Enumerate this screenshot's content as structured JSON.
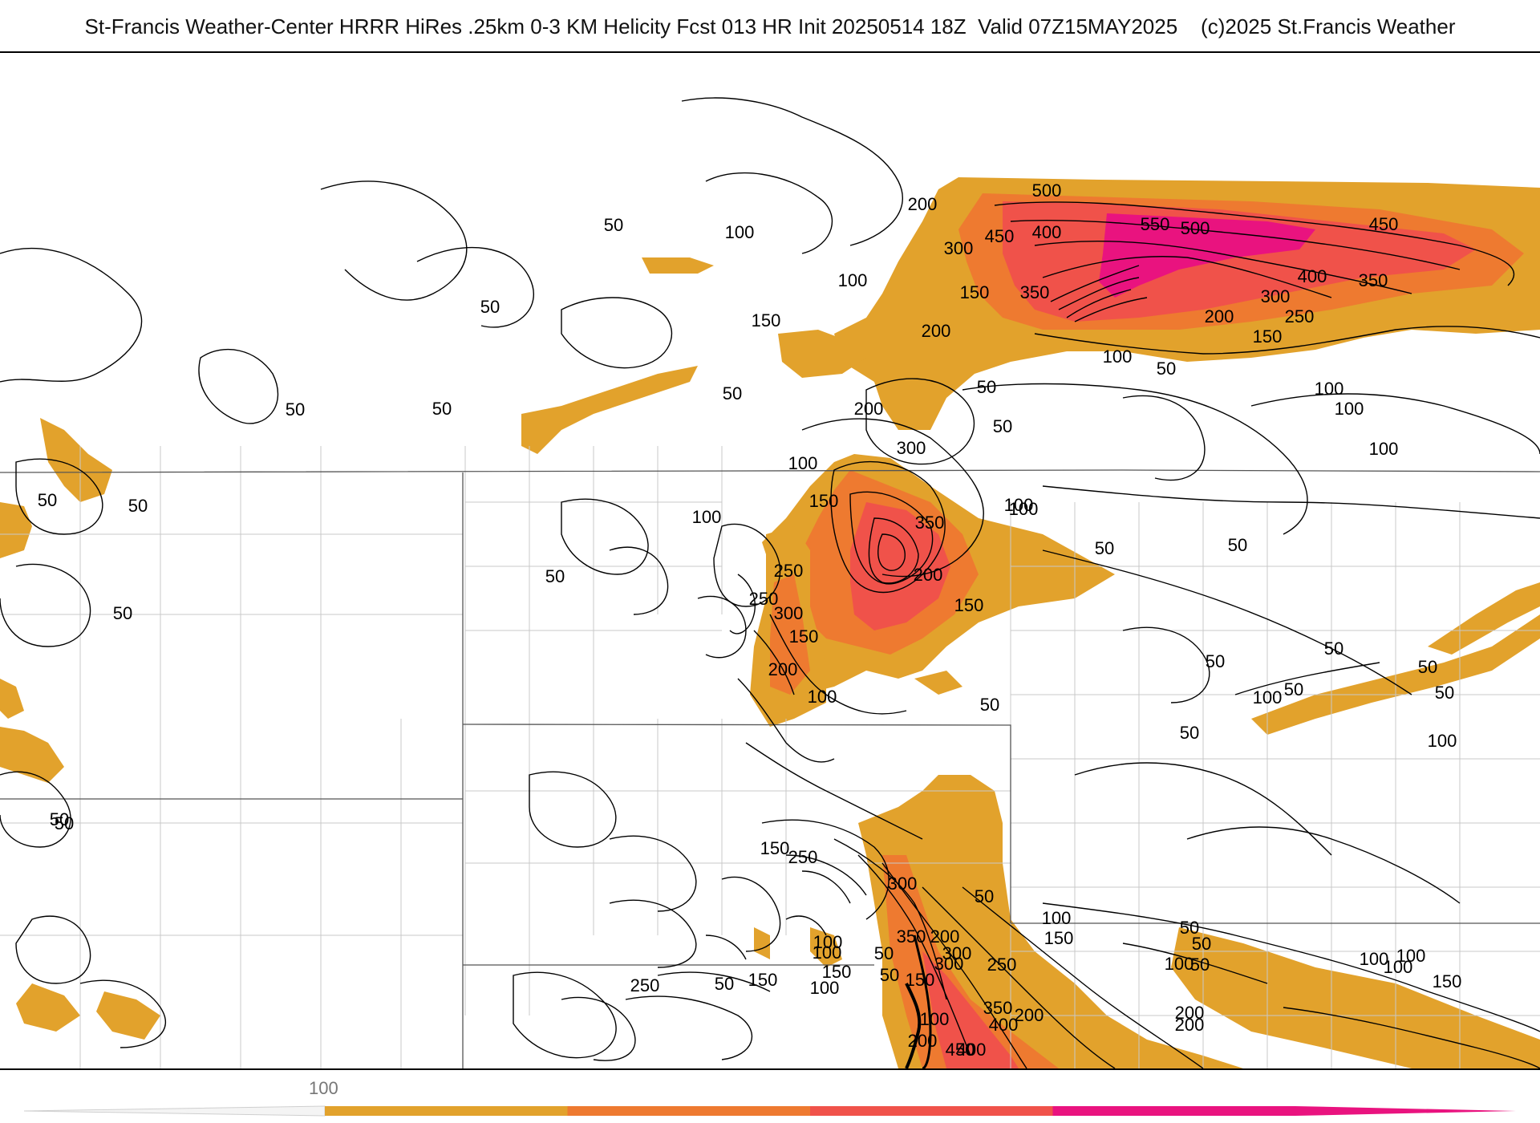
{
  "header": {
    "title": "St-Francis Weather-Center HRRR HiRes .25km 0-3 KM Helicity Fcst 013 HR Init 20250514 18Z  Valid 07Z15MAY2025    (c)2025 St.Francis Weather"
  },
  "colors": {
    "fill_100": "#e2a22c",
    "fill_200": "#ee7a30",
    "fill_300": "#f0524a",
    "fill_400": "#e9137f",
    "contour": "#000000",
    "boundary": "#555555",
    "county": "#c8c8c8"
  },
  "legend": {
    "tick_label": "100",
    "bins": [
      "#e2a22c",
      "#ee7a30",
      "#f0524a",
      "#e9137f"
    ]
  },
  "contour_labels": [
    {
      "text": "200"
    },
    {
      "text": "500"
    },
    {
      "text": "450"
    },
    {
      "text": "400"
    },
    {
      "text": "550"
    },
    {
      "text": "500"
    },
    {
      "text": "450"
    },
    {
      "text": "300"
    },
    {
      "text": "350"
    },
    {
      "text": "400"
    },
    {
      "text": "350"
    },
    {
      "text": "300"
    },
    {
      "text": "250"
    },
    {
      "text": "200"
    },
    {
      "text": "150"
    },
    {
      "text": "150"
    },
    {
      "text": "200"
    },
    {
      "text": "100"
    },
    {
      "text": "50"
    },
    {
      "text": "100"
    },
    {
      "text": "50"
    },
    {
      "text": "100"
    },
    {
      "text": "100"
    },
    {
      "text": "100"
    },
    {
      "text": "150"
    },
    {
      "text": "100"
    },
    {
      "text": "50"
    },
    {
      "text": "50"
    },
    {
      "text": "50"
    },
    {
      "text": "50"
    },
    {
      "text": "50"
    },
    {
      "text": "200"
    },
    {
      "text": "300"
    },
    {
      "text": "50"
    },
    {
      "text": "100"
    },
    {
      "text": "150"
    },
    {
      "text": "350"
    },
    {
      "text": "100"
    },
    {
      "text": "250"
    },
    {
      "text": "200"
    },
    {
      "text": "150"
    },
    {
      "text": "50"
    },
    {
      "text": "100"
    },
    {
      "text": "50"
    },
    {
      "text": "50"
    },
    {
      "text": "250"
    },
    {
      "text": "300"
    },
    {
      "text": "150"
    },
    {
      "text": "200"
    },
    {
      "text": "100"
    },
    {
      "text": "50"
    },
    {
      "text": "100"
    },
    {
      "text": "50"
    },
    {
      "text": "50"
    },
    {
      "text": "50"
    },
    {
      "text": "50"
    },
    {
      "text": "50"
    },
    {
      "text": "100"
    },
    {
      "text": "100"
    },
    {
      "text": "50"
    },
    {
      "text": "50"
    },
    {
      "text": "50"
    },
    {
      "text": "50"
    },
    {
      "text": "50"
    },
    {
      "text": "50"
    },
    {
      "text": "150"
    },
    {
      "text": "250"
    },
    {
      "text": "300"
    },
    {
      "text": "50"
    },
    {
      "text": "200"
    },
    {
      "text": "100"
    },
    {
      "text": "150"
    },
    {
      "text": "350"
    },
    {
      "text": "300"
    },
    {
      "text": "250"
    },
    {
      "text": "100"
    },
    {
      "text": "150"
    },
    {
      "text": "150"
    },
    {
      "text": "50"
    },
    {
      "text": "150"
    },
    {
      "text": "100"
    },
    {
      "text": "50"
    },
    {
      "text": "250"
    },
    {
      "text": "50"
    },
    {
      "text": "200"
    },
    {
      "text": "350"
    },
    {
      "text": "100"
    },
    {
      "text": "300"
    },
    {
      "text": "400"
    },
    {
      "text": "100"
    },
    {
      "text": "200"
    },
    {
      "text": "450"
    },
    {
      "text": "400"
    },
    {
      "text": "200"
    },
    {
      "text": "200"
    },
    {
      "text": "150"
    },
    {
      "text": "100"
    },
    {
      "text": "100"
    },
    {
      "text": "50"
    },
    {
      "text": "50"
    },
    {
      "text": "100"
    },
    {
      "text": "50"
    },
    {
      "text": "100"
    }
  ]
}
